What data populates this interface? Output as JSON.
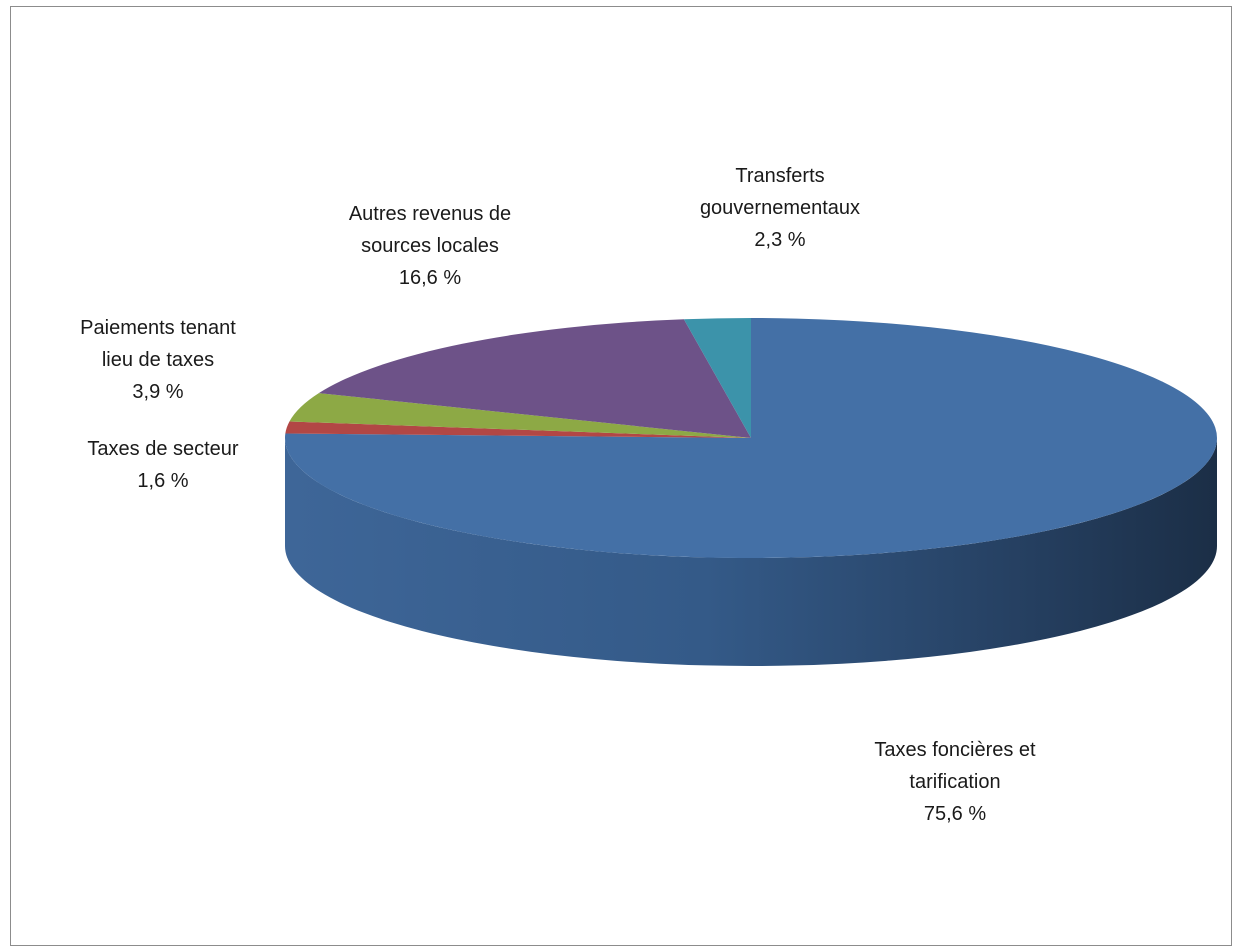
{
  "chart_data": {
    "type": "pie",
    "style": "3d",
    "title": "",
    "slices": [
      {
        "name": "Taxes foncières  et",
        "name2": "tarification",
        "value_label": "75,6 %",
        "value": 75.6,
        "color": "#4470a6"
      },
      {
        "name": "Taxes de secteur",
        "value_label": "1,6 %",
        "value": 1.6,
        "color": "#b24745"
      },
      {
        "name": "Paiements tenant",
        "name2": "lieu de taxes",
        "value_label": "3,9 %",
        "value": 3.9,
        "color": "#8da945"
      },
      {
        "name": "Autres revenus de",
        "name2": "sources locales",
        "value_label": "16,6 %",
        "value": 16.6,
        "color": "#6d5288"
      },
      {
        "name": "Transferts",
        "name2": "gouvernementaux",
        "value_label": "2,3 %",
        "value": 2.3,
        "color": "#3c93aa"
      }
    ],
    "legend": "none"
  }
}
